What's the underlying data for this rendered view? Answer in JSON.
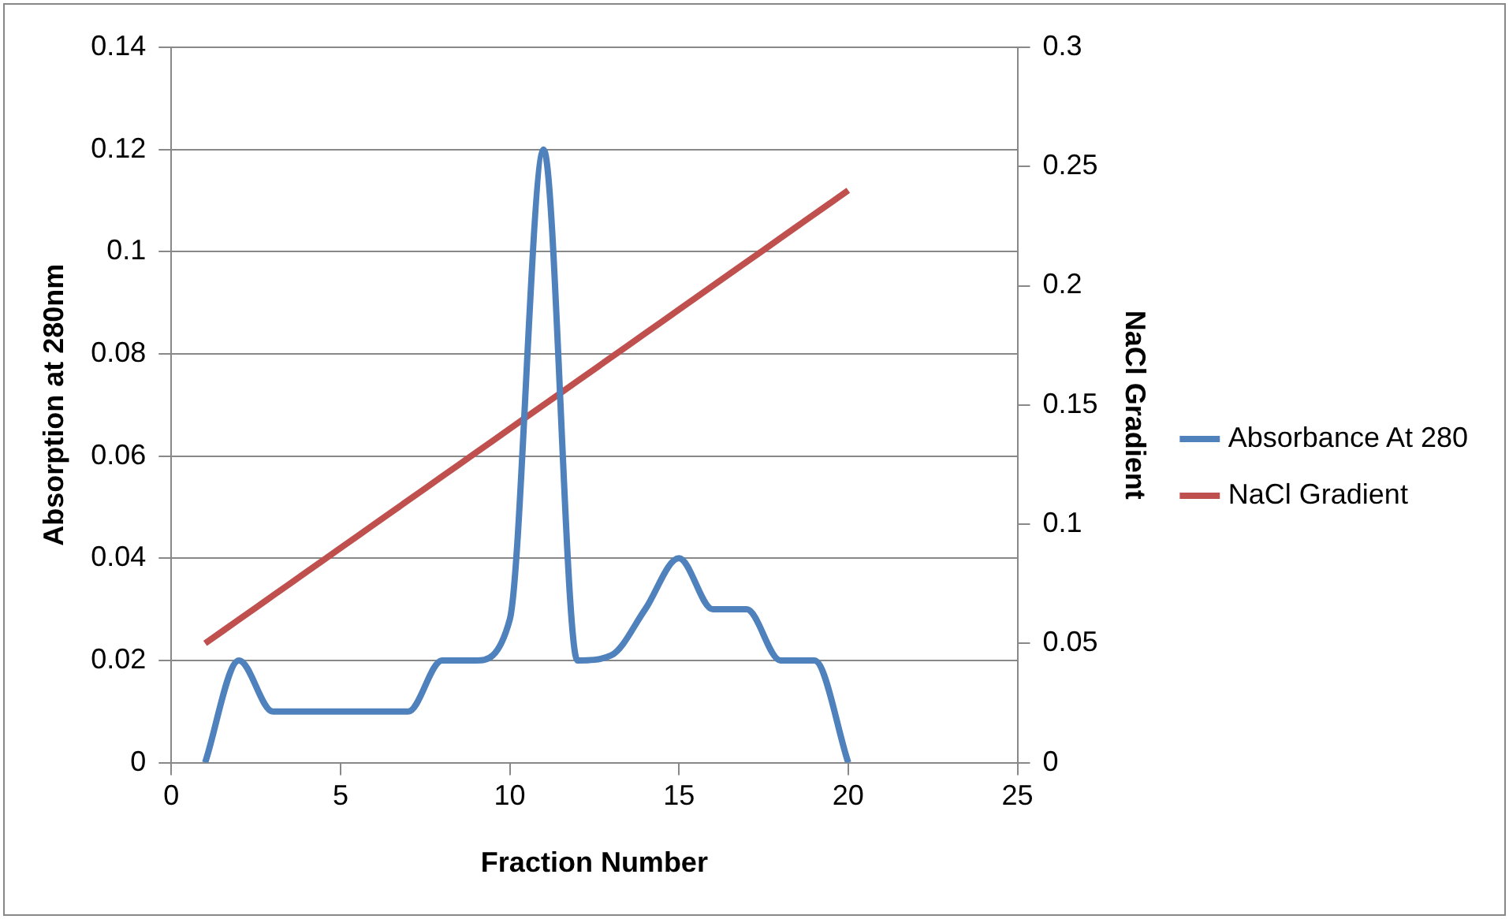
{
  "chart_data": {
    "type": "line",
    "xlabel": "Fraction Number",
    "ylabel": "Absorption at 280nm",
    "y2label": "NaCl Gradient",
    "x": [
      1,
      2,
      3,
      4,
      5,
      6,
      7,
      8,
      9,
      10,
      11,
      12,
      13,
      14,
      15,
      16,
      17,
      18,
      19,
      20
    ],
    "xlim": [
      0,
      25
    ],
    "xticks": [
      0,
      5,
      10,
      15,
      20,
      25
    ],
    "ylim": [
      0,
      0.14
    ],
    "yticks": [
      0,
      0.02,
      0.04,
      0.06,
      0.08,
      0.1,
      0.12,
      0.14
    ],
    "y2lim": [
      0,
      0.3
    ],
    "y2ticks": [
      0,
      0.05,
      0.1,
      0.15,
      0.2,
      0.25,
      0.3
    ],
    "series": [
      {
        "name": "Absorbance At 280",
        "color": "#4f81bd",
        "values": [
          0,
          0.02,
          0.01,
          0.01,
          0.01,
          0.01,
          0.01,
          0.02,
          0.02,
          0.028,
          0.12,
          0.02,
          0.021,
          0.03,
          0.04,
          0.03,
          0.03,
          0.02,
          0.02,
          0
        ]
      },
      {
        "name": "NaCl Gradient",
        "color": "#c0504d",
        "axis": "y2",
        "values": [
          0.05,
          0.06,
          0.07,
          0.08,
          0.09,
          0.1,
          0.11,
          0.12,
          0.13,
          0.14,
          0.15,
          0.16,
          0.17,
          0.18,
          0.19,
          0.2,
          0.21,
          0.22,
          0.23,
          0.24
        ]
      }
    ],
    "grid": "y",
    "legend": "right",
    "marker": "none",
    "line_style": "solid"
  }
}
